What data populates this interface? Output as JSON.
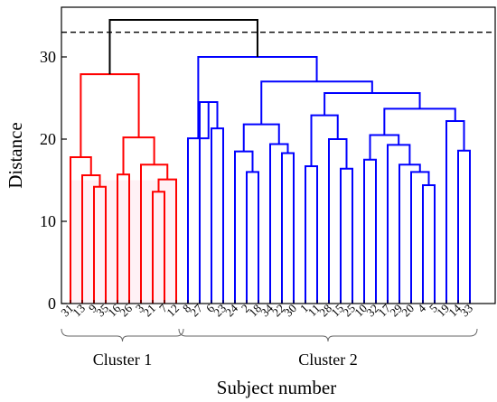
{
  "chart_data": {
    "type": "dendrogram",
    "xlabel": "Subject number",
    "ylabel": "Distance",
    "ylim": [
      0,
      37
    ],
    "yticks": [
      0,
      10,
      20,
      30
    ],
    "cut_height": 33,
    "leaf_order": [
      "31",
      "13",
      "9",
      "35",
      "16",
      "26",
      "3",
      "21",
      "7",
      "12",
      "8",
      "27",
      "6",
      "23",
      "24",
      "2",
      "18",
      "34",
      "22",
      "30",
      "1",
      "11",
      "28",
      "15",
      "25",
      "10",
      "32",
      "17",
      "29",
      "20",
      "4",
      "5",
      "19",
      "14",
      "33"
    ],
    "clusters": [
      {
        "label": "Cluster 1",
        "color": "#ff0000",
        "leaves": [
          "31",
          "13",
          "9",
          "35",
          "16",
          "26",
          "3",
          "21",
          "7",
          "12"
        ]
      },
      {
        "label": "Cluster 2",
        "color": "#0000ff",
        "leaves": [
          "8",
          "27",
          "6",
          "23",
          "24",
          "2",
          "18",
          "34",
          "22",
          "30",
          "1",
          "11",
          "28",
          "15",
          "25",
          "10",
          "32",
          "17",
          "29",
          "20",
          "4",
          "5",
          "19",
          "14",
          "33"
        ]
      }
    ],
    "root_color": "#000000",
    "merges": [
      {
        "a": "L:9",
        "b": "L:35",
        "h": 14.2,
        "c": "r"
      },
      {
        "a": "L:13",
        "b": "N:0",
        "h": 15.6,
        "c": "r"
      },
      {
        "a": "L:31",
        "b": "N:1",
        "h": 17.8,
        "c": "r"
      },
      {
        "a": "L:16",
        "b": "L:26",
        "h": 15.7,
        "c": "r"
      },
      {
        "a": "L:21",
        "b": "L:7",
        "h": 13.6,
        "c": "r"
      },
      {
        "a": "L:12",
        "b": "N:4",
        "h": 15.1,
        "c": "r"
      },
      {
        "a": "L:3",
        "b": "N:5",
        "h": 16.9,
        "c": "r"
      },
      {
        "a": "N:3",
        "b": "N:6",
        "h": 20.2,
        "c": "r"
      },
      {
        "a": "N:2",
        "b": "N:7",
        "h": 27.9,
        "c": "r"
      },
      {
        "a": "L:6",
        "b": "L:23",
        "h": 21.3,
        "c": "b"
      },
      {
        "a": "L:27",
        "b": "N:9",
        "h": 24.5,
        "c": "b"
      },
      {
        "a": "L:8",
        "b": "N:10",
        "h": 20.1,
        "c": "b"
      },
      {
        "a": "L:2",
        "b": "L:18",
        "h": 16.0,
        "c": "b"
      },
      {
        "a": "L:24",
        "b": "N:12",
        "h": 18.5,
        "c": "b"
      },
      {
        "a": "L:22",
        "b": "L:30",
        "h": 18.3,
        "c": "b"
      },
      {
        "a": "L:34",
        "b": "N:14",
        "h": 19.4,
        "c": "b"
      },
      {
        "a": "N:13",
        "b": "N:15",
        "h": 21.8,
        "c": "b"
      },
      {
        "a": "L:15",
        "b": "L:25",
        "h": 16.4,
        "c": "b"
      },
      {
        "a": "L:28",
        "b": "N:17",
        "h": 20.0,
        "c": "b"
      },
      {
        "a": "L:1",
        "b": "L:11",
        "h": 16.7,
        "c": "b"
      },
      {
        "a": "N:19",
        "b": "N:18",
        "h": 22.9,
        "c": "b"
      },
      {
        "a": "L:10",
        "b": "L:32",
        "h": 17.5,
        "c": "b"
      },
      {
        "a": "L:4",
        "b": "L:5",
        "h": 14.4,
        "c": "b"
      },
      {
        "a": "L:20",
        "b": "N:22",
        "h": 16.0,
        "c": "b"
      },
      {
        "a": "L:29",
        "b": "N:23",
        "h": 16.9,
        "c": "b"
      },
      {
        "a": "L:17",
        "b": "N:24",
        "h": 19.3,
        "c": "b"
      },
      {
        "a": "N:21",
        "b": "N:25",
        "h": 20.5,
        "c": "b"
      },
      {
        "a": "L:14",
        "b": "L:33",
        "h": 18.6,
        "c": "b"
      },
      {
        "a": "L:19",
        "b": "N:27",
        "h": 22.2,
        "c": "b"
      },
      {
        "a": "N:26",
        "b": "N:28",
        "h": 23.7,
        "c": "b"
      },
      {
        "a": "N:20",
        "b": "N:29",
        "h": 25.6,
        "c": "b"
      },
      {
        "a": "N:16",
        "b": "N:30",
        "h": 27.0,
        "c": "b"
      },
      {
        "a": "N:11",
        "b": "N:31",
        "h": 30.0,
        "c": "b"
      },
      {
        "a": "N:8",
        "b": "N:32",
        "h": 34.5,
        "c": "k"
      }
    ]
  }
}
